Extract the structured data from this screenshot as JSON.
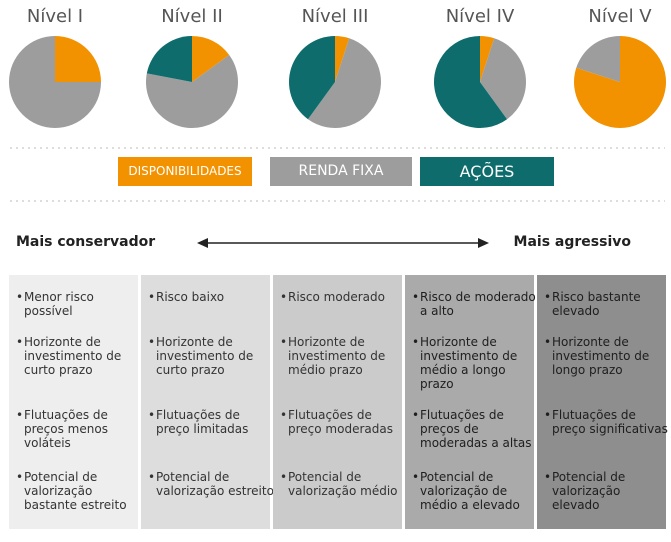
{
  "chart_data": [
    {
      "type": "pie",
      "title": "Nível I",
      "categories": [
        "DISPONIBILIDADES",
        "RENDA FIXA",
        "AÇÕES"
      ],
      "colors": [
        "#f39200",
        "#9d9d9d",
        "#0e6d6c"
      ],
      "values": [
        25,
        75,
        0
      ]
    },
    {
      "type": "pie",
      "title": "Nível II",
      "categories": [
        "DISPONIBILIDADES",
        "RENDA FIXA",
        "AÇÕES"
      ],
      "colors": [
        "#f39200",
        "#9d9d9d",
        "#0e6d6c"
      ],
      "values": [
        15,
        63,
        22
      ]
    },
    {
      "type": "pie",
      "title": "Nível III",
      "categories": [
        "DISPONIBILIDADES",
        "RENDA FIXA",
        "AÇÕES"
      ],
      "colors": [
        "#f39200",
        "#9d9d9d",
        "#0e6d6c"
      ],
      "values": [
        5,
        55,
        40
      ]
    },
    {
      "type": "pie",
      "title": "Nível IV",
      "categories": [
        "DISPONIBILIDADES",
        "RENDA FIXA",
        "AÇÕES"
      ],
      "colors": [
        "#f39200",
        "#9d9d9d",
        "#0e6d6c"
      ],
      "values": [
        5,
        35,
        60
      ]
    },
    {
      "type": "pie",
      "title": "Nível V",
      "categories": [
        "DISPONIBILIDADES",
        "RENDA FIXA",
        "AÇÕES"
      ],
      "colors": [
        "#f39200",
        "#9d9d9d",
        "#0e6d6c"
      ],
      "values": [
        80,
        20,
        0
      ]
    }
  ],
  "scale": {
    "left": "Mais conservador",
    "right": "Mais agressivo"
  },
  "profiles": [
    [
      "Menor risco possível",
      "Horizonte de investimento de curto prazo",
      "Flutuações de preços menos voláteis",
      "Potencial de valorização bastante estreito"
    ],
    [
      "Risco baixo",
      "Horizonte de investimento de curto prazo",
      "Flutuações de preço limitadas",
      "Potencial de valorização estreito"
    ],
    [
      "Risco moderado",
      "Horizonte de investimento de médio prazo",
      "Flutuações de preço moderadas",
      "Potencial de valorização médio"
    ],
    [
      "Risco de moderado a alto",
      "Horizonte de investimento de médio a longo prazo",
      "Flutuações de preços de moderadas a altas",
      "Potencial de valorização de médio a elevado"
    ],
    [
      "Risco bastante elevado",
      "Horizonte de investimento de longo prazo",
      "Flutuações de preço significativas",
      "Potencial de valorização elevado"
    ]
  ]
}
